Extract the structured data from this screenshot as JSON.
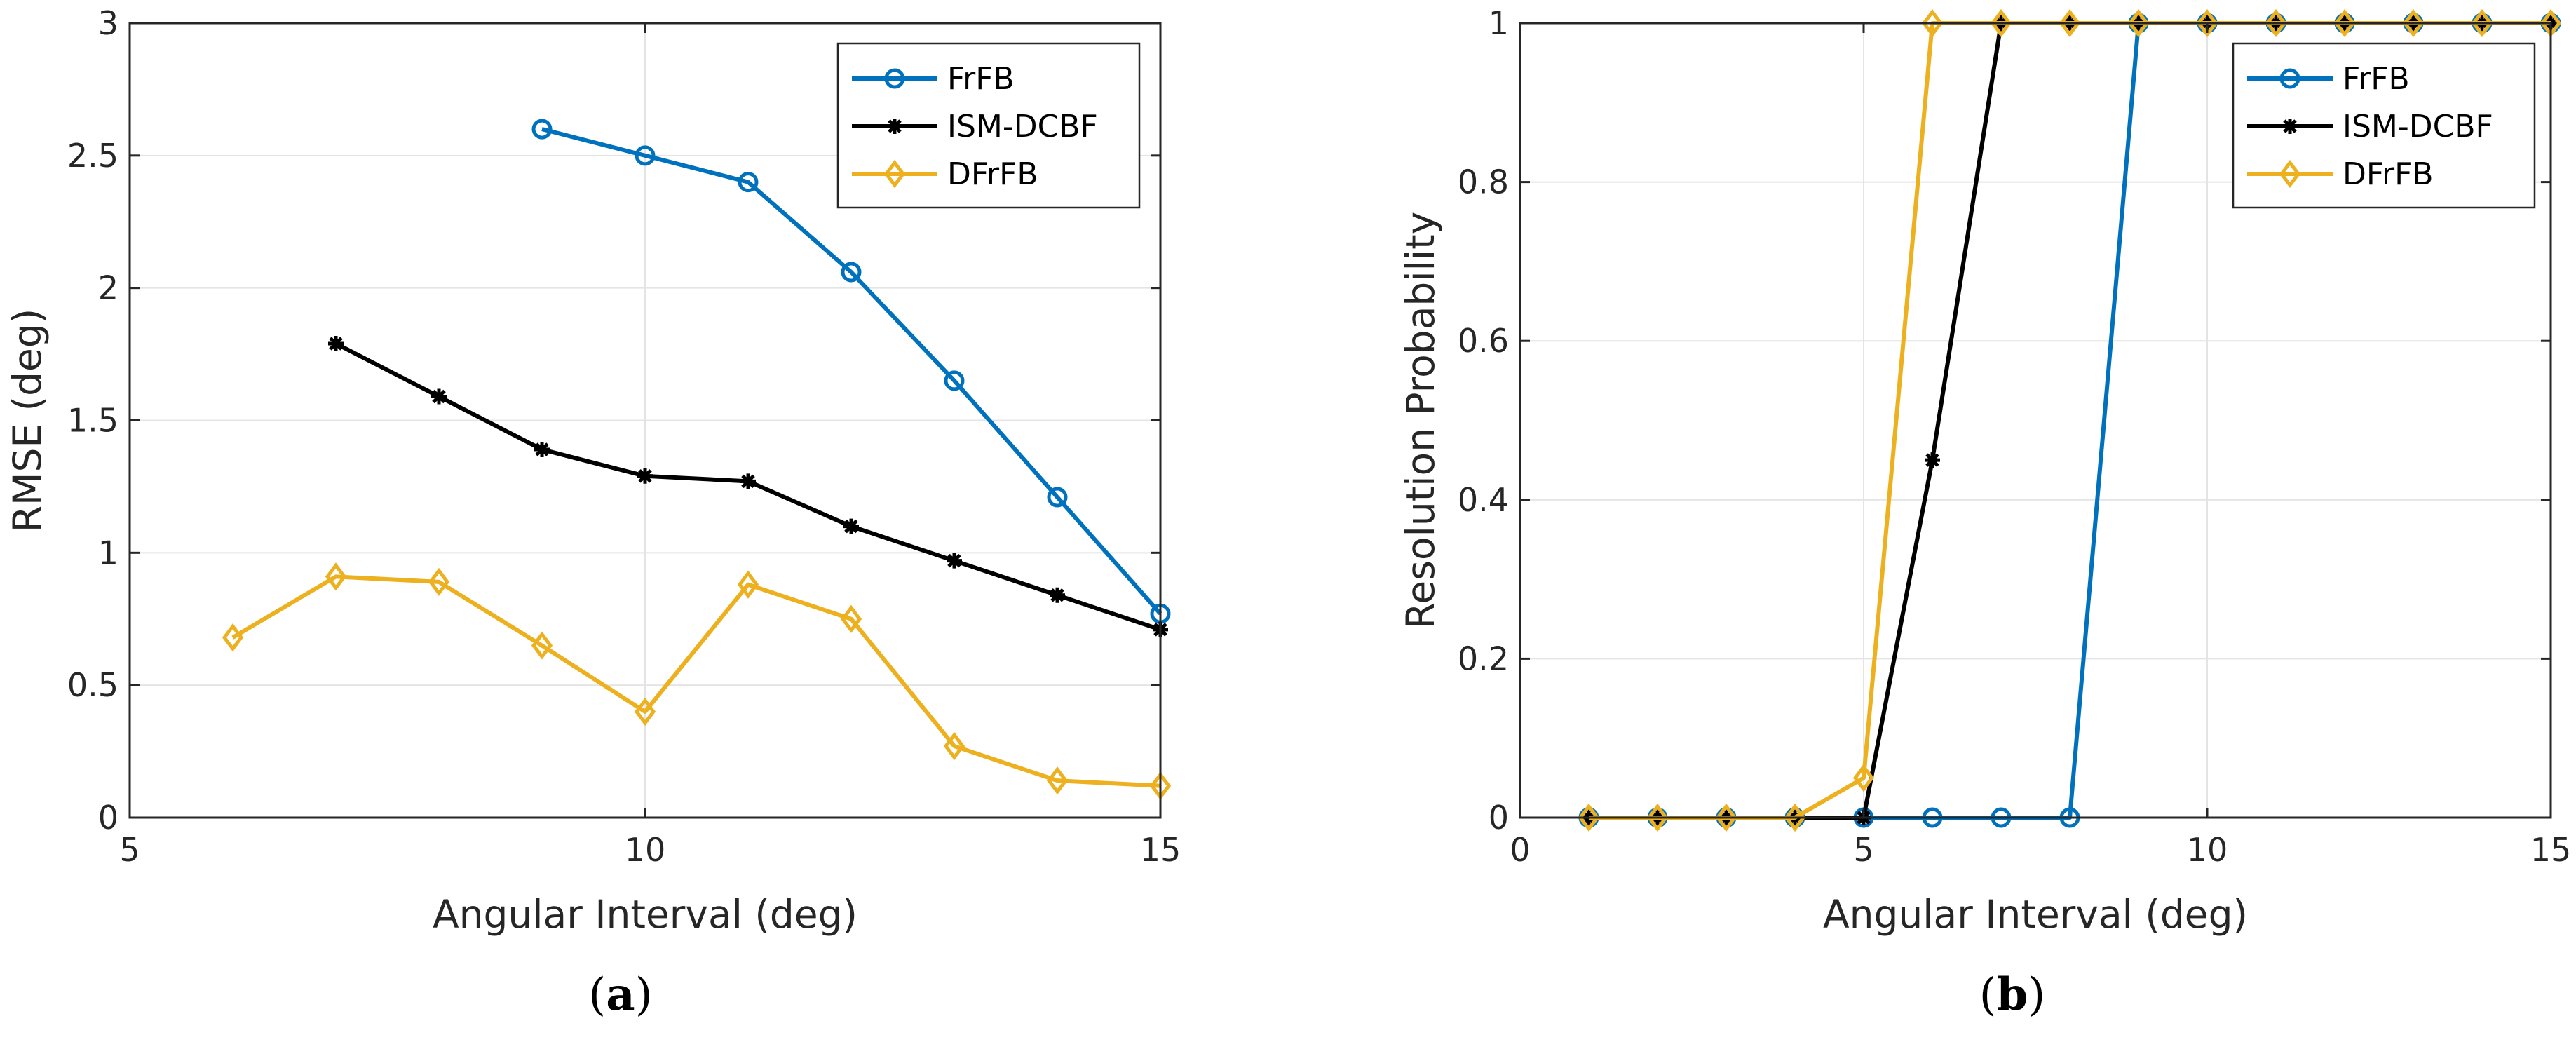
{
  "chart_data": [
    {
      "type": "line",
      "caption_letter": "a",
      "xlabel": "Angular Interval (deg)",
      "ylabel": "RMSE (deg)",
      "xlim": [
        5,
        15
      ],
      "ylim": [
        0,
        3
      ],
      "xticks": [
        5,
        10,
        15
      ],
      "yticks": [
        0,
        0.5,
        1,
        1.5,
        2,
        2.5,
        3
      ],
      "ytick_labels": [
        "0",
        "0.5",
        "1",
        "1.5",
        "2",
        "2.5",
        "3"
      ],
      "grid": true,
      "legend": "top-right",
      "series": [
        {
          "name": "FrFB",
          "color": "#0072BD",
          "marker": "circle",
          "x": [
            9,
            10,
            11,
            12,
            13,
            14,
            15
          ],
          "y": [
            2.6,
            2.5,
            2.4,
            2.06,
            1.65,
            1.21,
            0.77
          ]
        },
        {
          "name": "ISM-DCBF",
          "color": "#000000",
          "marker": "asterisk",
          "x": [
            7,
            8,
            9,
            10,
            11,
            12,
            13,
            14,
            15
          ],
          "y": [
            1.79,
            1.59,
            1.39,
            1.29,
            1.27,
            1.1,
            0.97,
            0.84,
            0.71
          ]
        },
        {
          "name": "DFrFB",
          "color": "#EDB120",
          "marker": "diamond",
          "x": [
            6,
            7,
            8,
            9,
            10,
            11,
            12,
            13,
            14,
            15
          ],
          "y": [
            0.68,
            0.91,
            0.89,
            0.65,
            0.4,
            0.88,
            0.75,
            0.27,
            0.14,
            0.12
          ]
        }
      ]
    },
    {
      "type": "line",
      "caption_letter": "b",
      "xlabel": "Angular Interval (deg)",
      "ylabel": "Resolution Probability",
      "xlim": [
        0,
        15
      ],
      "ylim": [
        0,
        1
      ],
      "xticks": [
        0,
        5,
        10,
        15
      ],
      "yticks": [
        0,
        0.2,
        0.4,
        0.6,
        0.8,
        1
      ],
      "ytick_labels": [
        "0",
        "0.2",
        "0.4",
        "0.6",
        "0.8",
        "1"
      ],
      "grid": true,
      "legend": "top-right",
      "series": [
        {
          "name": "FrFB",
          "color": "#0072BD",
          "marker": "circle",
          "x": [
            1,
            2,
            3,
            4,
            5,
            6,
            7,
            8,
            9,
            10,
            11,
            12,
            13,
            14,
            15
          ],
          "y": [
            0,
            0,
            0,
            0,
            0,
            0,
            0,
            0,
            1,
            1,
            1,
            1,
            1,
            1,
            1
          ]
        },
        {
          "name": "ISM-DCBF",
          "color": "#000000",
          "marker": "asterisk",
          "x": [
            1,
            2,
            3,
            4,
            5,
            6,
            7,
            8,
            9,
            10,
            11,
            12,
            13,
            14,
            15
          ],
          "y": [
            0,
            0,
            0,
            0,
            0,
            0.45,
            1,
            1,
            1,
            1,
            1,
            1,
            1,
            1,
            1
          ]
        },
        {
          "name": "DFrFB",
          "color": "#EDB120",
          "marker": "diamond",
          "x": [
            1,
            2,
            3,
            4,
            5,
            6,
            7,
            8,
            9,
            10,
            11,
            12,
            13,
            14,
            15
          ],
          "y": [
            0,
            0,
            0,
            0,
            0.05,
            1,
            1,
            1,
            1,
            1,
            1,
            1,
            1,
            1,
            1
          ]
        }
      ]
    }
  ]
}
